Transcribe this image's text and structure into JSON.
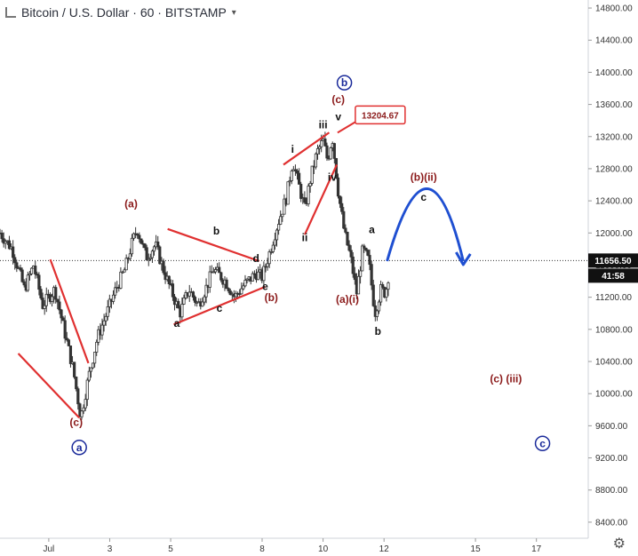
{
  "header": {
    "title": "Bitcoin / U.S. Dollar · 60 · BITSTAMP",
    "menu_arrow": "▾"
  },
  "colors": {
    "up": "#333333",
    "down": "#333333",
    "wave_dark": "#8b1a1a",
    "trend_line": "#e03030",
    "circle": "#1a2a9a",
    "projection": "#1f4fd1",
    "price_label_bg": "#111111"
  },
  "chart_data": {
    "type": "candlestick",
    "title": "Bitcoin / U.S. Dollar · 60 · BITSTAMP",
    "ylim": [
      8200,
      14900
    ],
    "y_ticks": [
      8400,
      8800,
      9200,
      9600,
      10000,
      10400,
      10800,
      11200,
      11600,
      12000,
      12400,
      12800,
      13200,
      13600,
      14000,
      14400,
      14800
    ],
    "y_tick_labels": [
      "8400.00",
      "8800.00",
      "9200.00",
      "9600.00",
      "10000.00",
      "10400.00",
      "10800.00",
      "11200.00",
      "11600.00",
      "12000.00",
      "12400.00",
      "12800.00",
      "13200.00",
      "13600.00",
      "14000.00",
      "14400.00",
      "14800.00"
    ],
    "x_day_range": [
      -0.6,
      18.7
    ],
    "x_ticks": [
      {
        "day": 1,
        "label": "Jul"
      },
      {
        "day": 3,
        "label": "3"
      },
      {
        "day": 5,
        "label": "5"
      },
      {
        "day": 8,
        "label": "8"
      },
      {
        "day": 10,
        "label": "10"
      },
      {
        "day": 12,
        "label": "12"
      },
      {
        "day": 15,
        "label": "15"
      },
      {
        "day": 17,
        "label": "17"
      }
    ],
    "price_path": [
      [
        -0.6,
        12000
      ],
      [
        -0.2,
        11800
      ],
      [
        0.2,
        11300
      ],
      [
        0.5,
        11600
      ],
      [
        0.8,
        11100
      ],
      [
        1.2,
        11300
      ],
      [
        1.5,
        10800
      ],
      [
        1.8,
        10300
      ],
      [
        2.05,
        9700
      ],
      [
        2.3,
        10200
      ],
      [
        2.6,
        10700
      ],
      [
        2.9,
        11000
      ],
      [
        3.2,
        11300
      ],
      [
        3.5,
        11550
      ],
      [
        3.75,
        11900
      ],
      [
        3.9,
        12050
      ],
      [
        4.2,
        11700
      ],
      [
        4.5,
        11850
      ],
      [
        4.8,
        11500
      ],
      [
        5.0,
        11300
      ],
      [
        5.3,
        11000
      ],
      [
        5.6,
        11300
      ],
      [
        5.9,
        11100
      ],
      [
        6.2,
        11350
      ],
      [
        6.4,
        11550
      ],
      [
        6.8,
        11400
      ],
      [
        7.1,
        11200
      ],
      [
        7.4,
        11350
      ],
      [
        7.8,
        11500
      ],
      [
        8.0,
        11450
      ],
      [
        8.2,
        11700
      ],
      [
        8.5,
        12100
      ],
      [
        8.8,
        12450
      ],
      [
        9.0,
        12900
      ],
      [
        9.2,
        12600
      ],
      [
        9.4,
        12300
      ],
      [
        9.6,
        12700
      ],
      [
        9.8,
        13000
      ],
      [
        10.0,
        13150
      ],
      [
        10.15,
        12900
      ],
      [
        10.3,
        13204
      ],
      [
        10.5,
        12500
      ],
      [
        10.7,
        12000
      ],
      [
        10.9,
        11700
      ],
      [
        11.1,
        11250
      ],
      [
        11.3,
        11800
      ],
      [
        11.5,
        11650
      ],
      [
        11.7,
        11000
      ],
      [
        11.9,
        11300
      ],
      [
        12.05,
        11250
      ],
      [
        12.2,
        11600
      ]
    ],
    "last_price": "11656.50",
    "countdown": "41:58",
    "high_label": "13204.67",
    "annotations": [
      {
        "text": "(a)",
        "day": 3.7,
        "price": 12320,
        "style": "dark"
      },
      {
        "text": "b",
        "day": 6.5,
        "price": 11980,
        "style": "black"
      },
      {
        "text": "d",
        "day": 7.8,
        "price": 11640,
        "style": "black"
      },
      {
        "text": "a",
        "day": 5.2,
        "price": 10830,
        "style": "black"
      },
      {
        "text": "c",
        "day": 6.6,
        "price": 11020,
        "style": "black"
      },
      {
        "text": "e",
        "day": 8.1,
        "price": 11290,
        "style": "black"
      },
      {
        "text": "(b)",
        "day": 8.3,
        "price": 11150,
        "style": "dark"
      },
      {
        "text": "(c)",
        "day": 1.9,
        "price": 9600,
        "style": "dark"
      },
      {
        "text": "i",
        "day": 9.0,
        "price": 13000,
        "style": "black"
      },
      {
        "text": "iii",
        "day": 10.0,
        "price": 13300,
        "style": "black"
      },
      {
        "text": "v",
        "day": 10.5,
        "price": 13400,
        "style": "black"
      },
      {
        "text": "(c)",
        "day": 10.5,
        "price": 13620,
        "style": "dark"
      },
      {
        "text": "ii",
        "day": 9.4,
        "price": 11900,
        "style": "black"
      },
      {
        "text": "iv",
        "day": 10.3,
        "price": 12650,
        "style": "black"
      },
      {
        "text": "a",
        "day": 11.6,
        "price": 12000,
        "style": "black"
      },
      {
        "text": "b",
        "day": 11.8,
        "price": 10730,
        "style": "black"
      },
      {
        "text": "(a)(i)",
        "day": 10.8,
        "price": 11130,
        "style": "dark"
      },
      {
        "text": "(b)(ii)",
        "day": 13.3,
        "price": 12650,
        "style": "dark"
      },
      {
        "text": "c",
        "day": 13.3,
        "price": 12400,
        "style": "black"
      },
      {
        "text": "(c) (iii)",
        "day": 16.0,
        "price": 10140,
        "style": "dark"
      }
    ],
    "circle_labels": [
      {
        "text": "a",
        "day": 2.0,
        "price": 9330
      },
      {
        "text": "b",
        "day": 10.7,
        "price": 13870
      },
      {
        "text": "c",
        "day": 17.2,
        "price": 9380
      }
    ],
    "trend_lines": [
      [
        [
          0.0,
          10500
        ],
        [
          2.0,
          9700
        ]
      ],
      [
        [
          1.05,
          11670
        ],
        [
          2.3,
          10380
        ]
      ],
      [
        [
          4.9,
          12050
        ],
        [
          7.9,
          11650
        ]
      ],
      [
        [
          5.1,
          10860
        ],
        [
          8.1,
          11330
        ]
      ],
      [
        [
          8.7,
          12850
        ],
        [
          10.2,
          13250
        ]
      ],
      [
        [
          9.4,
          11980
        ],
        [
          10.45,
          12850
        ]
      ]
    ],
    "projection_arc": [
      [
        12.1,
        11650
      ],
      [
        13.4,
        12550
      ],
      [
        14.6,
        11650
      ]
    ]
  }
}
